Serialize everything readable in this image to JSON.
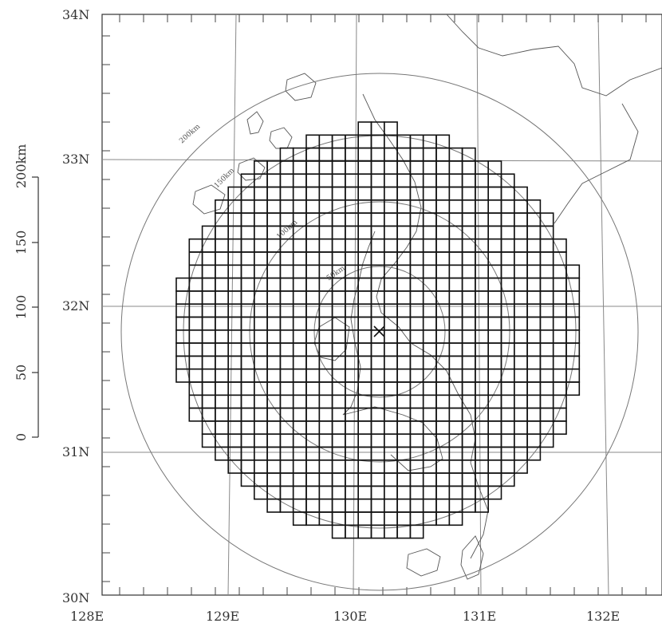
{
  "map": {
    "latitude_labels": [
      "34N",
      "33N",
      "32N",
      "31N",
      "30N"
    ],
    "longitude_labels": [
      "128E",
      "129E",
      "130E",
      "131E",
      "132E"
    ],
    "range_ring_labels": [
      "200km",
      "150km",
      "100km",
      "50km"
    ],
    "center_marker": "x-mark",
    "colors": {
      "grid_cells": "#111111",
      "coastline": "#555555",
      "rings": "#777777",
      "graticule": "#888888"
    }
  },
  "scale_bar": {
    "title": "200km",
    "tick_labels": [
      "150",
      "100",
      "50",
      "0"
    ]
  }
}
